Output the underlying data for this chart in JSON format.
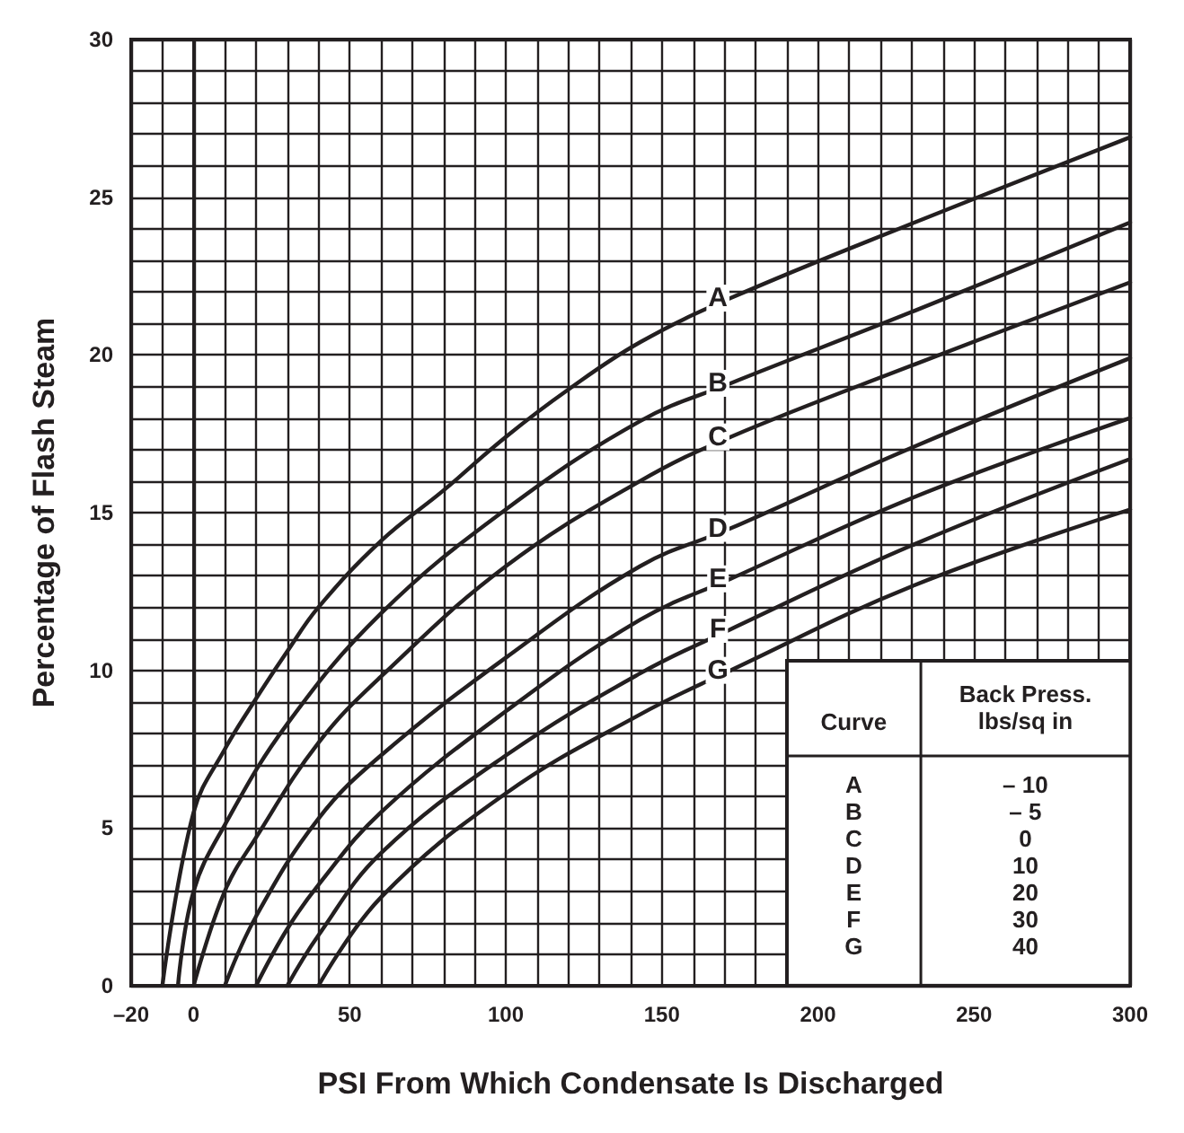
{
  "chart_data": {
    "type": "line",
    "xlabel": "PSI From Which Condensate Is Discharged",
    "ylabel": "Percentage of Flash Steam",
    "xlim": [
      -20,
      300
    ],
    "ylim": [
      0,
      30
    ],
    "xticks": [
      {
        "value": -20,
        "label": "–20"
      },
      {
        "value": -10,
        "label": null
      },
      0,
      {
        "value": 10,
        "label": null
      },
      {
        "value": 20,
        "label": null
      },
      {
        "value": 30,
        "label": null
      },
      {
        "value": 40,
        "label": null
      },
      50,
      {
        "value": 60,
        "label": null
      },
      {
        "value": 70,
        "label": null
      },
      {
        "value": 80,
        "label": null
      },
      {
        "value": 90,
        "label": null
      },
      100,
      {
        "value": 110,
        "label": null
      },
      {
        "value": 120,
        "label": null
      },
      {
        "value": 130,
        "label": null
      },
      {
        "value": 140,
        "label": null
      },
      150,
      {
        "value": 160,
        "label": null
      },
      {
        "value": 170,
        "label": null
      },
      {
        "value": 180,
        "label": null
      },
      {
        "value": 190,
        "label": null
      },
      200,
      {
        "value": 210,
        "label": null
      },
      {
        "value": 220,
        "label": null
      },
      {
        "value": 230,
        "label": null
      },
      {
        "value": 240,
        "label": null
      },
      250,
      {
        "value": 260,
        "label": null
      },
      {
        "value": 270,
        "label": null
      },
      {
        "value": 280,
        "label": null
      },
      {
        "value": 290,
        "label": null
      },
      300
    ],
    "yticks": [
      0,
      {
        "value": 1,
        "label": null
      },
      {
        "value": 2,
        "label": null
      },
      {
        "value": 3,
        "label": null
      },
      {
        "value": 4,
        "label": null
      },
      5,
      {
        "value": 6,
        "label": null
      },
      {
        "value": 7,
        "label": null
      },
      {
        "value": 8,
        "label": null
      },
      {
        "value": 9,
        "label": null
      },
      10,
      {
        "value": 11,
        "label": null
      },
      {
        "value": 12,
        "label": null
      },
      {
        "value": 13,
        "label": null
      },
      {
        "value": 14,
        "label": null
      },
      15,
      {
        "value": 16,
        "label": null
      },
      {
        "value": 17,
        "label": null
      },
      {
        "value": 18,
        "label": null
      },
      {
        "value": 19,
        "label": null
      },
      20,
      {
        "value": 21,
        "label": null
      },
      {
        "value": 22,
        "label": null
      },
      {
        "value": 23,
        "label": null
      },
      {
        "value": 24,
        "label": null
      },
      25,
      {
        "value": 26,
        "label": null
      },
      {
        "value": 27,
        "label": null
      },
      {
        "value": 28,
        "label": null
      },
      {
        "value": 29,
        "label": null
      },
      30
    ],
    "grid": true,
    "legend": false,
    "marker": "none",
    "line_style": "solid",
    "series": [
      {
        "name": "A",
        "color": "#231f20",
        "x": [
          -10,
          0,
          10,
          20,
          30,
          40,
          60,
          80,
          100,
          120,
          143,
          172,
          231,
          300
        ],
        "values": [
          0,
          5.5,
          7.5,
          9.1,
          10.6,
          12,
          14.1,
          15.7,
          17.4,
          18.9,
          20.4,
          21.8,
          24.2,
          26.9
        ]
      },
      {
        "name": "B",
        "color": "#231f20",
        "x": [
          -5,
          0,
          10,
          30,
          60,
          100,
          143,
          172,
          231,
          300
        ],
        "values": [
          0,
          3,
          5.1,
          8.3,
          11.8,
          15.1,
          17.9,
          19.1,
          21.4,
          24.2
        ]
      },
      {
        "name": "C",
        "color": "#231f20",
        "x": [
          0,
          10,
          20,
          40,
          60,
          100,
          143,
          172,
          231,
          300
        ],
        "values": [
          0,
          3,
          4.7,
          7.7,
          9.8,
          13.3,
          16,
          17.4,
          19.7,
          22.3
        ]
      },
      {
        "name": "D",
        "color": "#231f20",
        "x": [
          10,
          20,
          40,
          60,
          100,
          143,
          172,
          231,
          300
        ],
        "values": [
          0,
          2.2,
          5.3,
          7.3,
          10.4,
          13.3,
          14.5,
          17.1,
          19.9
        ]
      },
      {
        "name": "E",
        "color": "#231f20",
        "x": [
          20,
          30,
          40,
          60,
          100,
          143,
          172,
          231,
          300
        ],
        "values": [
          0,
          1.8,
          3.2,
          5.5,
          8.7,
          11.6,
          12.9,
          15.5,
          18
        ]
      },
      {
        "name": "F",
        "color": "#231f20",
        "x": [
          30,
          40,
          60,
          100,
          143,
          172,
          231,
          300
        ],
        "values": [
          0,
          1.6,
          4.2,
          7.3,
          9.9,
          11.3,
          14,
          16.7
        ]
      },
      {
        "name": "G",
        "color": "#231f20",
        "x": [
          40,
          60,
          100,
          143,
          172,
          231,
          300
        ],
        "values": [
          0,
          2.8,
          6.1,
          8.6,
          10,
          12.7,
          15.1
        ]
      }
    ],
    "annotations": [
      "Curve",
      "Back Press.\nlbs/sq in",
      "– 10",
      "– 5",
      "0",
      "10",
      "20",
      "30",
      "40"
    ]
  }
}
